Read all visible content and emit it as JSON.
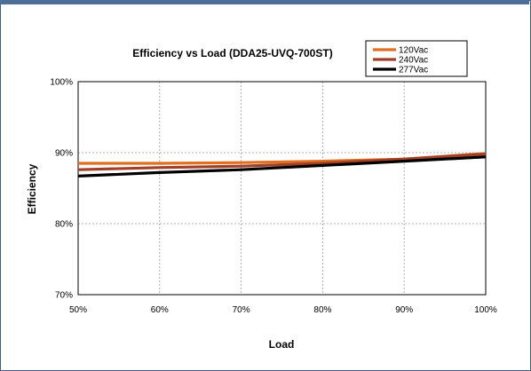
{
  "chart_data": {
    "type": "line",
    "title": "Efficiency vs Load (DDA25-UVQ-700ST)",
    "xlabel": "Load",
    "ylabel": "Efficiency",
    "x": [
      50,
      60,
      70,
      80,
      90,
      100
    ],
    "xticks": [
      "50%",
      "60%",
      "70%",
      "80%",
      "90%",
      "100%"
    ],
    "yticks": [
      "70%",
      "80%",
      "90%",
      "100%"
    ],
    "xlim": [
      50,
      100
    ],
    "ylim": [
      70,
      100
    ],
    "grid": true,
    "legend": "top-right",
    "series": [
      {
        "name": "120Vac",
        "color": "#e07020",
        "values": [
          88.5,
          88.5,
          88.6,
          88.8,
          89.1,
          89.9
        ]
      },
      {
        "name": "240Vac",
        "color": "#a04028",
        "values": [
          87.6,
          87.9,
          88.1,
          88.5,
          89.1,
          89.8
        ]
      },
      {
        "name": "277Vac",
        "color": "#000000",
        "values": [
          86.7,
          87.2,
          87.6,
          88.2,
          88.8,
          89.4
        ]
      }
    ]
  }
}
